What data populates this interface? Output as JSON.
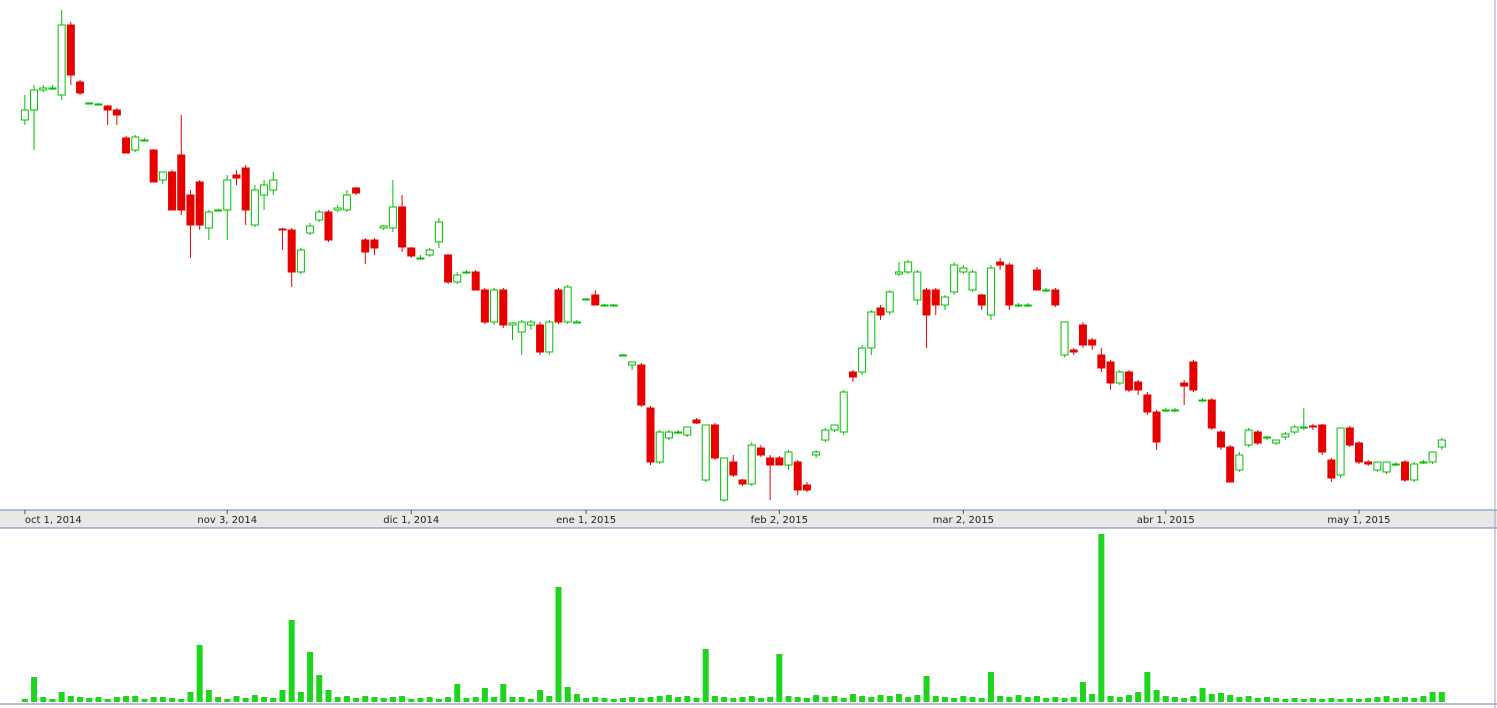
{
  "chart_data": {
    "type": "candlestick",
    "up_color": "#00c000",
    "down_color": "#e60000",
    "volume_color": "#1ed41e",
    "xlim": [
      -2.7,
      160
    ],
    "ylim": [
      0,
      510
    ],
    "volume_ylim": [
      0,
      170
    ],
    "xticks": [
      {
        "value": 0,
        "label": "oct 1, 2014"
      },
      {
        "value": 22,
        "label": "nov 3, 2014"
      },
      {
        "value": 42,
        "label": "dic 1, 2014"
      },
      {
        "value": 61,
        "label": "ene 1, 2015"
      },
      {
        "value": 82,
        "label": "feb 2, 2015"
      },
      {
        "value": 102,
        "label": "mar 2, 2015"
      },
      {
        "value": 124,
        "label": "abr 1, 2015"
      },
      {
        "value": 145,
        "label": "may 1, 2015"
      }
    ],
    "ohlc": [
      [
        390,
        415,
        385,
        400
      ],
      [
        400,
        425,
        360,
        420
      ],
      [
        420,
        425,
        418,
        422
      ],
      [
        422,
        425,
        420,
        422
      ],
      [
        415,
        500,
        410,
        485
      ],
      [
        485,
        488,
        425,
        435
      ],
      [
        428,
        430,
        415,
        417
      ],
      [
        407,
        408,
        406,
        407
      ],
      [
        406,
        407,
        405,
        406
      ],
      [
        404,
        405,
        385,
        400
      ],
      [
        400,
        402,
        385,
        395
      ],
      [
        372,
        374,
        357,
        357
      ],
      [
        360,
        375,
        358,
        373
      ],
      [
        370,
        372,
        369,
        370
      ],
      [
        360,
        361,
        328,
        328
      ],
      [
        330,
        338,
        326,
        338
      ],
      [
        338,
        340,
        300,
        300
      ],
      [
        355,
        395,
        295,
        300
      ],
      [
        315,
        320,
        252,
        285
      ],
      [
        328,
        330,
        280,
        285
      ],
      [
        282,
        300,
        270,
        298
      ],
      [
        300,
        301,
        299,
        300
      ],
      [
        300,
        335,
        270,
        330
      ],
      [
        335,
        340,
        325,
        332
      ],
      [
        342,
        345,
        285,
        300
      ],
      [
        285,
        325,
        283,
        320
      ],
      [
        315,
        330,
        300,
        325
      ],
      [
        320,
        338,
        315,
        330
      ],
      [
        281,
        282,
        260,
        280
      ],
      [
        280,
        282,
        223,
        238
      ],
      [
        238,
        262,
        236,
        260
      ],
      [
        277,
        287,
        275,
        284
      ],
      [
        290,
        300,
        288,
        298
      ],
      [
        298,
        300,
        268,
        270
      ],
      [
        300,
        305,
        298,
        302
      ],
      [
        300,
        320,
        298,
        315
      ],
      [
        322,
        323,
        315,
        317
      ],
      [
        270,
        272,
        246,
        258
      ],
      [
        270,
        272,
        255,
        262
      ],
      [
        282,
        285,
        280,
        284
      ],
      [
        282,
        330,
        278,
        303
      ],
      [
        303,
        315,
        258,
        263
      ],
      [
        262,
        263,
        252,
        254
      ],
      [
        252,
        255,
        250,
        252
      ],
      [
        255,
        262,
        253,
        260
      ],
      [
        268,
        292,
        262,
        288
      ],
      [
        255,
        256,
        226,
        228
      ],
      [
        228,
        238,
        226,
        235
      ],
      [
        237,
        240,
        236,
        238
      ],
      [
        238,
        240,
        220,
        220
      ],
      [
        220,
        222,
        186,
        188
      ],
      [
        188,
        222,
        185,
        220
      ],
      [
        220,
        222,
        182,
        185
      ],
      [
        185,
        188,
        170,
        187
      ],
      [
        178,
        190,
        155,
        188
      ],
      [
        185,
        190,
        180,
        188
      ],
      [
        185,
        188,
        155,
        158
      ],
      [
        158,
        190,
        155,
        188
      ],
      [
        220,
        222,
        186,
        188
      ],
      [
        188,
        225,
        186,
        223
      ],
      [
        188,
        190,
        187,
        188
      ],
      [
        211,
        212,
        210,
        211
      ],
      [
        215,
        220,
        205,
        205
      ],
      [
        205,
        206,
        204,
        205
      ],
      [
        205,
        206,
        204,
        205
      ],
      [
        155,
        156,
        154,
        155
      ],
      [
        145,
        148,
        140,
        148
      ],
      [
        145,
        147,
        103,
        105
      ],
      [
        102,
        104,
        45,
        48
      ],
      [
        48,
        80,
        46,
        78
      ],
      [
        72,
        80,
        70,
        78
      ],
      [
        78,
        80,
        76,
        78
      ],
      [
        75,
        83,
        73,
        83
      ],
      [
        90,
        92,
        86,
        87
      ],
      [
        30,
        85,
        28,
        85
      ],
      [
        85,
        87,
        50,
        52
      ],
      [
        10,
        52,
        8,
        52
      ],
      [
        48,
        55,
        33,
        35
      ],
      [
        30,
        31,
        24,
        26
      ],
      [
        26,
        68,
        24,
        65
      ],
      [
        62,
        65,
        53,
        55
      ],
      [
        52,
        55,
        10,
        45
      ],
      [
        52,
        54,
        45,
        45
      ],
      [
        45,
        60,
        40,
        58
      ],
      [
        48,
        50,
        15,
        20
      ],
      [
        25,
        28,
        18,
        20
      ],
      [
        55,
        60,
        52,
        58
      ],
      [
        70,
        82,
        68,
        80
      ],
      [
        80,
        85,
        78,
        85
      ],
      [
        78,
        120,
        75,
        118
      ],
      [
        138,
        140,
        128,
        133
      ],
      [
        138,
        165,
        135,
        162
      ],
      [
        162,
        200,
        155,
        198
      ],
      [
        202,
        205,
        190,
        195
      ],
      [
        198,
        220,
        195,
        218
      ],
      [
        236,
        248,
        234,
        238
      ],
      [
        238,
        250,
        236,
        248
      ],
      [
        210,
        240,
        205,
        238
      ],
      [
        220,
        222,
        162,
        195
      ],
      [
        220,
        222,
        195,
        205
      ],
      [
        205,
        215,
        200,
        213
      ],
      [
        218,
        248,
        215,
        245
      ],
      [
        238,
        245,
        236,
        242
      ],
      [
        220,
        240,
        218,
        238
      ],
      [
        215,
        216,
        200,
        205
      ],
      [
        195,
        245,
        190,
        242
      ],
      [
        248,
        252,
        240,
        245
      ],
      [
        245,
        247,
        200,
        205
      ],
      [
        205,
        207,
        203,
        205
      ],
      [
        205,
        207,
        203,
        205
      ],
      [
        240,
        243,
        220,
        220
      ],
      [
        220,
        222,
        218,
        220
      ],
      [
        220,
        222,
        203,
        205
      ],
      [
        155,
        188,
        153,
        188
      ],
      [
        160,
        162,
        155,
        158
      ],
      [
        185,
        188,
        162,
        165
      ],
      [
        170,
        172,
        160,
        165
      ],
      [
        155,
        162,
        138,
        142
      ],
      [
        148,
        150,
        120,
        127
      ],
      [
        127,
        140,
        125,
        138
      ],
      [
        138,
        140,
        118,
        120
      ],
      [
        128,
        130,
        115,
        120
      ],
      [
        115,
        118,
        95,
        98
      ],
      [
        98,
        100,
        60,
        68
      ],
      [
        100,
        102,
        98,
        100
      ],
      [
        100,
        102,
        98,
        100
      ],
      [
        127,
        130,
        105,
        124
      ],
      [
        148,
        150,
        118,
        120
      ],
      [
        110,
        112,
        108,
        110
      ],
      [
        110,
        112,
        80,
        82
      ],
      [
        78,
        80,
        60,
        63
      ],
      [
        63,
        65,
        28,
        28
      ],
      [
        40,
        58,
        38,
        55
      ],
      [
        65,
        82,
        63,
        80
      ],
      [
        78,
        80,
        65,
        67
      ],
      [
        72,
        74,
        70,
        73
      ],
      [
        67,
        70,
        65,
        70
      ],
      [
        73,
        78,
        70,
        76
      ],
      [
        78,
        85,
        76,
        83
      ],
      [
        83,
        102,
        80,
        83
      ],
      [
        84,
        86,
        80,
        83
      ],
      [
        85,
        86,
        55,
        58
      ],
      [
        50,
        52,
        28,
        32
      ],
      [
        35,
        82,
        32,
        82
      ],
      [
        82,
        84,
        63,
        65
      ],
      [
        67,
        69,
        46,
        48
      ],
      [
        48,
        50,
        44,
        46
      ],
      [
        40,
        48,
        38,
        48
      ],
      [
        38,
        48,
        36,
        48
      ],
      [
        46,
        48,
        44,
        46
      ],
      [
        48,
        50,
        28,
        30
      ],
      [
        30,
        48,
        28,
        46
      ],
      [
        48,
        50,
        46,
        48
      ],
      [
        48,
        58,
        46,
        58
      ],
      [
        63,
        72,
        60,
        70
      ]
    ],
    "volume": [
      3,
      25,
      5,
      3,
      10,
      6,
      5,
      4,
      5,
      3,
      5,
      6,
      6,
      3,
      5,
      5,
      4,
      3,
      10,
      57,
      12,
      5,
      3,
      6,
      4,
      7,
      5,
      4,
      12,
      82,
      10,
      50,
      27,
      12,
      5,
      6,
      4,
      6,
      5,
      4,
      5,
      6,
      3,
      4,
      5,
      3,
      5,
      18,
      4,
      5,
      14,
      5,
      18,
      5,
      5,
      3,
      12,
      6,
      115,
      15,
      8,
      4,
      5,
      4,
      3,
      4,
      5,
      4,
      5,
      6,
      7,
      5,
      6,
      4,
      53,
      6,
      5,
      4,
      5,
      6,
      4,
      5,
      48,
      6,
      5,
      4,
      7,
      5,
      6,
      4,
      8,
      6,
      5,
      7,
      6,
      8,
      5,
      7,
      26,
      6,
      5,
      4,
      6,
      5,
      4,
      30,
      6,
      5,
      7,
      5,
      6,
      4,
      5,
      4,
      5,
      20,
      8,
      168,
      6,
      5,
      7,
      10,
      30,
      12,
      6,
      5,
      4,
      6,
      14,
      8,
      9,
      7,
      5,
      6,
      4,
      5,
      4,
      3,
      4,
      3,
      4,
      3,
      4,
      3,
      4,
      3,
      4,
      5,
      6,
      4,
      5,
      4,
      6,
      10,
      10
    ]
  }
}
